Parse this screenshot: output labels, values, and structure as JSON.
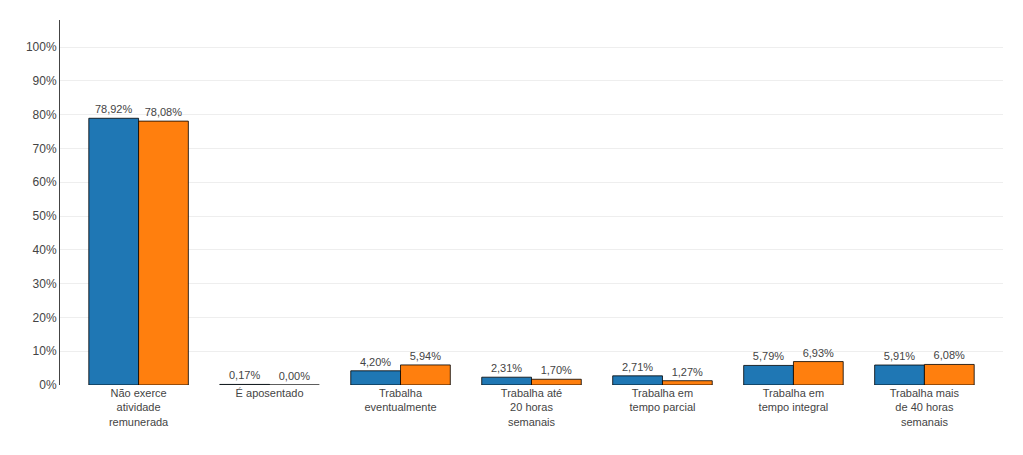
{
  "chart_data": {
    "type": "bar",
    "categories": [
      "Não exerce\natividade\nremunerada",
      "É aposentado",
      "Trabalha\neventualmente",
      "Trabalha até\n20 horas\nsemanais",
      "Trabalha em\ntempo parcial",
      "Trabalha em\ntempo integral",
      "Trabalha mais\nde 40 horas\nsemanais"
    ],
    "series": [
      {
        "values": [
          78.92,
          0.17,
          4.2,
          2.31,
          2.71,
          5.79,
          5.91
        ],
        "value_labels": [
          "78,92%",
          "0,17%",
          "4,20%",
          "2,31%",
          "2,71%",
          "5,79%",
          "5,91%"
        ]
      },
      {
        "values": [
          78.08,
          0.0,
          5.94,
          1.7,
          1.27,
          6.93,
          6.08
        ],
        "value_labels": [
          "78,08%",
          "0,00%",
          "5,94%",
          "1,70%",
          "1,27%",
          "6,93%",
          "6,08%"
        ]
      }
    ],
    "ylim": [
      0,
      108
    ],
    "yticks": [
      {
        "value": 0,
        "label": "0%"
      },
      {
        "value": 10,
        "label": "10%"
      },
      {
        "value": 20,
        "label": "20%"
      },
      {
        "value": 30,
        "label": "30%"
      },
      {
        "value": 40,
        "label": "40%"
      },
      {
        "value": 50,
        "label": "50%"
      },
      {
        "value": 60,
        "label": "60%"
      },
      {
        "value": 70,
        "label": "70%"
      },
      {
        "value": 80,
        "label": "80%"
      },
      {
        "value": 90,
        "label": "90%"
      },
      {
        "value": 100,
        "label": "100%"
      }
    ],
    "grid": true,
    "data_labels": true
  }
}
